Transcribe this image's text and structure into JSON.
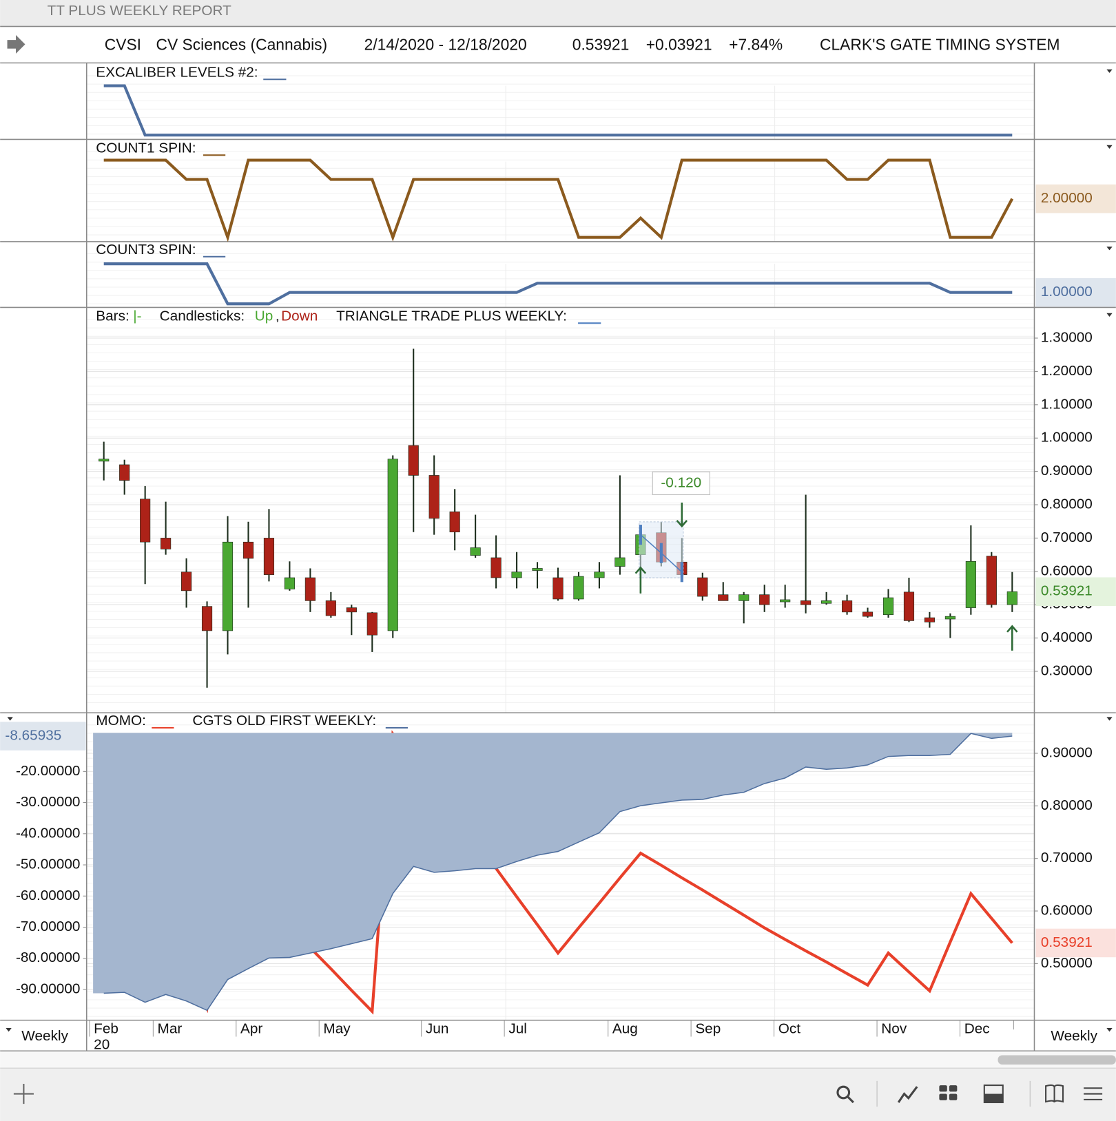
{
  "window": {
    "title": "TT PLUS WEEKLY REPORT"
  },
  "header": {
    "symbol": "CVSI",
    "name": "CV Sciences (Cannabis)",
    "range": "2/14/2020 - 12/18/2020",
    "last": "0.53921",
    "change": "+0.03921",
    "change_pct": "+7.84%",
    "system": "CLARK'S GATE TIMING SYSTEM"
  },
  "chart_data": [
    {
      "type": "line",
      "ylim": [
        0,
        1
      ],
      "series": [
        {
          "name": "EXCALIBER LEVELS #2:",
          "color": "#4f6f9f",
          "values": [
            1,
            1,
            0,
            0,
            0,
            0,
            0,
            0,
            0,
            0,
            0,
            0,
            0,
            0,
            0,
            0,
            0,
            0,
            0,
            0,
            0,
            0,
            0,
            0,
            0,
            0,
            0,
            0,
            0,
            0,
            0,
            0,
            0,
            0,
            0,
            0,
            0,
            0,
            0,
            0,
            0,
            0,
            0,
            0,
            0
          ]
        }
      ]
    },
    {
      "type": "line",
      "ylim": [
        0,
        4
      ],
      "series": [
        {
          "name": "COUNT1 SPIN:",
          "color": "#8b5a1e",
          "last_label": "2.00000",
          "values": [
            4,
            4,
            4,
            4,
            3,
            3,
            0,
            4,
            4,
            4,
            4,
            3,
            3,
            3,
            0,
            3,
            3,
            3,
            3,
            3,
            3,
            3,
            3,
            0,
            0,
            0,
            1,
            0,
            4,
            4,
            4,
            4,
            4,
            4,
            4,
            4,
            3,
            3,
            4,
            4,
            4,
            0,
            0,
            0,
            2
          ]
        }
      ]
    },
    {
      "type": "line",
      "ylim": [
        0,
        3.5
      ],
      "series": [
        {
          "name": "COUNT3 SPIN:",
          "color": "#4f6f9f",
          "last_label": "1.00000",
          "values": [
            3.5,
            3.5,
            3.5,
            3.5,
            3.5,
            3.5,
            0,
            0,
            0,
            1,
            1,
            1,
            1,
            1,
            1,
            1,
            1,
            1,
            1,
            1,
            1,
            1.8,
            1.8,
            1.8,
            1.8,
            1.8,
            1.8,
            1.8,
            1.8,
            1.8,
            1.8,
            1.8,
            1.8,
            1.8,
            1.8,
            1.8,
            1.8,
            1.8,
            1.8,
            1.8,
            1.8,
            1,
            1,
            1,
            1
          ]
        }
      ]
    },
    {
      "type": "candlestick",
      "ylim": [
        0.18,
        1.332
      ],
      "yticks": [
        {
          "value": 0.3,
          "label": "0.30000"
        },
        {
          "value": 0.4,
          "label": "0.40000"
        },
        {
          "value": 0.5,
          "label": "0.50000"
        },
        {
          "value": 0.6,
          "label": "0.60000"
        },
        {
          "value": 0.7,
          "label": "0.70000"
        },
        {
          "value": 0.8,
          "label": "0.80000"
        },
        {
          "value": 0.9,
          "label": "0.90000"
        },
        {
          "value": 1.0,
          "label": "1.00000"
        },
        {
          "value": 1.1,
          "label": "1.10000"
        },
        {
          "value": 1.2,
          "label": "1.20000"
        },
        {
          "value": 1.3,
          "label": "1.30000"
        }
      ],
      "legend": {
        "bars": "Bars:",
        "candles": "Candlesticks:",
        "up": "Up",
        "down": "Down"
      },
      "up_color": "#4aa832",
      "down_color": "#ad2218",
      "last_label": "0.53921",
      "open": [
        0.931,
        0.92,
        0.817,
        0.7,
        0.598,
        0.495,
        0.422,
        0.688,
        0.7,
        0.547,
        0.581,
        0.512,
        0.491,
        0.476,
        0.422,
        0.978,
        0.888,
        0.779,
        0.648,
        0.641,
        0.581,
        0.607,
        0.581,
        0.517,
        0.581,
        0.615,
        0.65,
        0.716,
        0.628,
        0.581,
        0.53,
        0.512,
        0.53,
        0.512,
        0.512,
        0.504,
        0.512,
        0.478,
        0.47,
        0.538,
        0.461,
        0.457,
        0.491,
        0.646,
        0.5
      ],
      "high": [
        0.989,
        0.935,
        0.856,
        0.809,
        0.639,
        0.51,
        0.766,
        0.749,
        0.787,
        0.63,
        0.609,
        0.538,
        0.5,
        0.478,
        0.948,
        1.268,
        0.948,
        0.847,
        0.77,
        0.708,
        0.658,
        0.628,
        0.611,
        0.598,
        0.628,
        0.888,
        0.738,
        0.749,
        0.7,
        0.596,
        0.568,
        0.538,
        0.56,
        0.56,
        0.83,
        0.538,
        0.53,
        0.491,
        0.547,
        0.581,
        0.478,
        0.474,
        0.738,
        0.658,
        0.598
      ],
      "low": [
        0.873,
        0.83,
        0.562,
        0.65,
        0.491,
        0.251,
        0.351,
        0.491,
        0.57,
        0.542,
        0.478,
        0.461,
        0.409,
        0.358,
        0.4,
        0.718,
        0.71,
        0.663,
        0.641,
        0.549,
        0.549,
        0.549,
        0.512,
        0.512,
        0.549,
        0.59,
        0.534,
        0.615,
        0.581,
        0.512,
        0.512,
        0.444,
        0.478,
        0.491,
        0.474,
        0.5,
        0.47,
        0.461,
        0.461,
        0.448,
        0.431,
        0.4,
        0.47,
        0.491,
        0.478
      ],
      "close": [
        0.937,
        0.873,
        0.688,
        0.667,
        0.542,
        0.422,
        0.688,
        0.639,
        0.59,
        0.581,
        0.512,
        0.467,
        0.478,
        0.409,
        0.937,
        0.888,
        0.759,
        0.718,
        0.671,
        0.581,
        0.598,
        0.609,
        0.517,
        0.585,
        0.598,
        0.641,
        0.71,
        0.628,
        0.59,
        0.525,
        0.512,
        0.53,
        0.5,
        0.515,
        0.5,
        0.512,
        0.478,
        0.465,
        0.521,
        0.452,
        0.448,
        0.465,
        0.63,
        0.5,
        0.53921
      ],
      "series": [
        {
          "name": "TRIANGLE TRADE PLUS WEEKLY:",
          "color": "#4f7fc0",
          "values": [
            null,
            null,
            null,
            null,
            null,
            null,
            null,
            null,
            null,
            null,
            null,
            null,
            null,
            null,
            null,
            null,
            null,
            null,
            null,
            null,
            null,
            null,
            null,
            null,
            null,
            null,
            0.71,
            0.655,
            0.598,
            null,
            null,
            null,
            null,
            null,
            null,
            null,
            null,
            null,
            null,
            null,
            null,
            null,
            null,
            null,
            null
          ]
        }
      ],
      "annotation": "-0.120"
    },
    {
      "type": "line",
      "ylim": [
        -99.4,
        -7.6
      ],
      "y2lim": [
        0.395,
        0.939
      ],
      "yticks": [
        {
          "value": -20,
          "label": "-20.00000"
        },
        {
          "value": -30,
          "label": "-30.00000"
        },
        {
          "value": -40,
          "label": "-40.00000"
        },
        {
          "value": -50,
          "label": "-50.00000"
        },
        {
          "value": -60,
          "label": "-60.00000"
        },
        {
          "value": -70,
          "label": "-70.00000"
        },
        {
          "value": -80,
          "label": "-80.00000"
        },
        {
          "value": -90,
          "label": "-90.00000"
        }
      ],
      "y2ticks": [
        {
          "value": 0.5,
          "label": "0.50000"
        },
        {
          "value": 0.6,
          "label": "0.60000"
        },
        {
          "value": 0.7,
          "label": "0.70000"
        },
        {
          "value": 0.8,
          "label": "0.80000"
        },
        {
          "value": 0.9,
          "label": "0.90000"
        }
      ],
      "series": [
        {
          "name": "MOMO:",
          "color": "#e8402a",
          "axis": "y2",
          "last_label": "0.53921",
          "values": [
            0.885,
            0.791,
            0.697,
            0.604,
            0.51,
            0.416,
            0.692,
            0.652,
            0.611,
            0.571,
            0.53,
            0.49,
            0.449,
            0.409,
            0.937,
            0.886,
            0.835,
            0.783,
            0.732,
            0.681,
            0.627,
            0.574,
            0.52,
            0.568,
            0.615,
            0.663,
            0.71,
            0.687,
            0.663,
            0.64,
            0.616,
            0.592,
            0.568,
            0.546,
            0.524,
            0.503,
            0.481,
            0.459,
            0.52,
            0.484,
            0.448,
            0.541,
            0.633,
            0.586,
            0.53921
          ]
        },
        {
          "name": "CGTS OLD FIRST WEEKLY:",
          "color": "#4f6f9f",
          "fill": "#a4b6cf",
          "last_label": "-8.65935",
          "values": [
            -91.2,
            -90.9,
            -94.1,
            -91.6,
            -93.7,
            -96.7,
            -86.8,
            -83.3,
            -79.9,
            -79.7,
            -78.3,
            -76.9,
            -75.3,
            -73.7,
            -59.2,
            -50.5,
            -52.4,
            -51.9,
            -51.2,
            -51.2,
            -48.9,
            -46.9,
            -45.7,
            -42.7,
            -39.7,
            -32.9,
            -31.0,
            -30.1,
            -29.2,
            -29.0,
            -27.6,
            -26.7,
            -23.9,
            -22.1,
            -18.6,
            -19.3,
            -18.9,
            -17.9,
            -15.2,
            -14.9,
            -14.9,
            -14.5,
            -7.8,
            -9.4,
            -8.65935
          ]
        }
      ]
    }
  ],
  "x_axis": {
    "months": [
      "Feb",
      "Mar",
      "Apr",
      "May",
      "Jun",
      "Jul",
      "Aug",
      "Sep",
      "Oct",
      "Nov",
      "Dec"
    ],
    "year": "20"
  },
  "footer": {
    "period_left": "Weekly",
    "period_right": "Weekly"
  }
}
